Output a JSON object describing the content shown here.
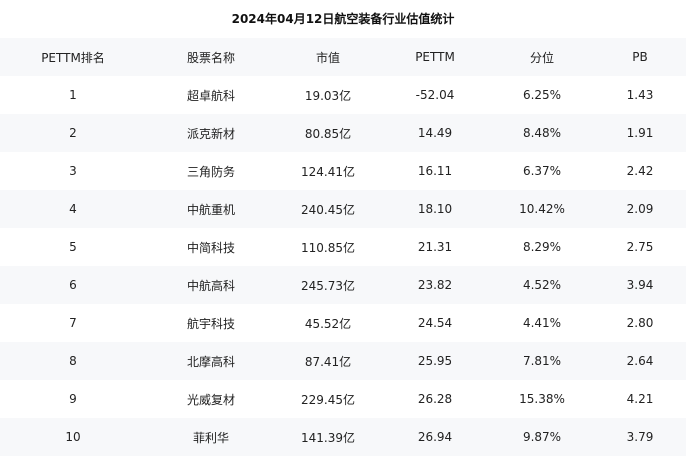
{
  "title": "2024年04月12日航空装备行业估值统计",
  "headers": [
    "PETTM排名",
    "股票名称",
    "市值",
    "PETTM",
    "分位",
    "PB"
  ],
  "rows": [
    [
      "1",
      "超卓航科",
      "19.03亿",
      "-52.04",
      "6.25%",
      "1.43"
    ],
    [
      "2",
      "派克新材",
      "80.85亿",
      "14.49",
      "8.48%",
      "1.91"
    ],
    [
      "3",
      "三角防务",
      "124.41亿",
      "16.11",
      "6.37%",
      "2.42"
    ],
    [
      "4",
      "中航重机",
      "240.45亿",
      "18.10",
      "10.42%",
      "2.09"
    ],
    [
      "5",
      "中简科技",
      "110.85亿",
      "21.31",
      "8.29%",
      "2.75"
    ],
    [
      "6",
      "中航高科",
      "245.73亿",
      "23.82",
      "4.52%",
      "3.94"
    ],
    [
      "7",
      "航宇科技",
      "45.52亿",
      "24.54",
      "4.41%",
      "2.80"
    ],
    [
      "8",
      "北摩高科",
      "87.41亿",
      "25.95",
      "7.81%",
      "2.64"
    ],
    [
      "9",
      "光威复材",
      "229.45亿",
      "26.28",
      "15.38%",
      "4.21"
    ],
    [
      "10",
      "菲利华",
      "141.39亿",
      "26.94",
      "9.87%",
      "3.79"
    ]
  ]
}
